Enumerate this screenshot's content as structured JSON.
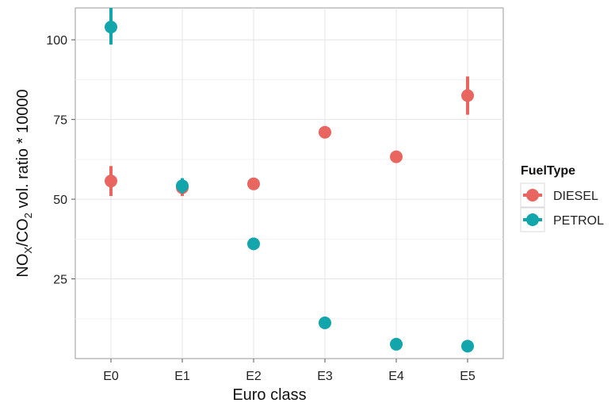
{
  "chart_data": {
    "type": "scatter",
    "title": "",
    "xlabel": "Euro class",
    "ylabel_parts": {
      "a": "NO",
      "b": "X",
      "c": "/CO",
      "d": "2",
      "e": " vol. ratio * 10000"
    },
    "categories": [
      "E0",
      "E1",
      "E2",
      "E3",
      "E4",
      "E5"
    ],
    "ylim": [
      0,
      110
    ],
    "yticks": [
      25,
      50,
      75,
      100
    ],
    "ytick_labels": [
      "25",
      "50",
      "75",
      "100"
    ],
    "grid": true,
    "legend": {
      "title": "FuelType",
      "placement": "right"
    },
    "series": [
      {
        "name": "DIESEL",
        "color": "#e8665f",
        "values": [
          55.7,
          53.6,
          54.8,
          71.0,
          63.3,
          82.5
        ],
        "err_low": [
          51.0,
          51.0,
          54.0,
          70.4,
          62.6,
          76.5
        ],
        "err_high": [
          60.4,
          56.2,
          55.6,
          71.6,
          64.0,
          88.5
        ]
      },
      {
        "name": "PETROL",
        "color": "#12a6ac",
        "values": [
          104.0,
          54.2,
          36.0,
          11.2,
          4.5,
          3.9
        ],
        "err_low": [
          98.5,
          51.8,
          35.4,
          10.6,
          3.9,
          2.6
        ],
        "err_high": [
          110.0,
          56.6,
          36.6,
          11.8,
          5.1,
          5.2
        ]
      }
    ]
  }
}
